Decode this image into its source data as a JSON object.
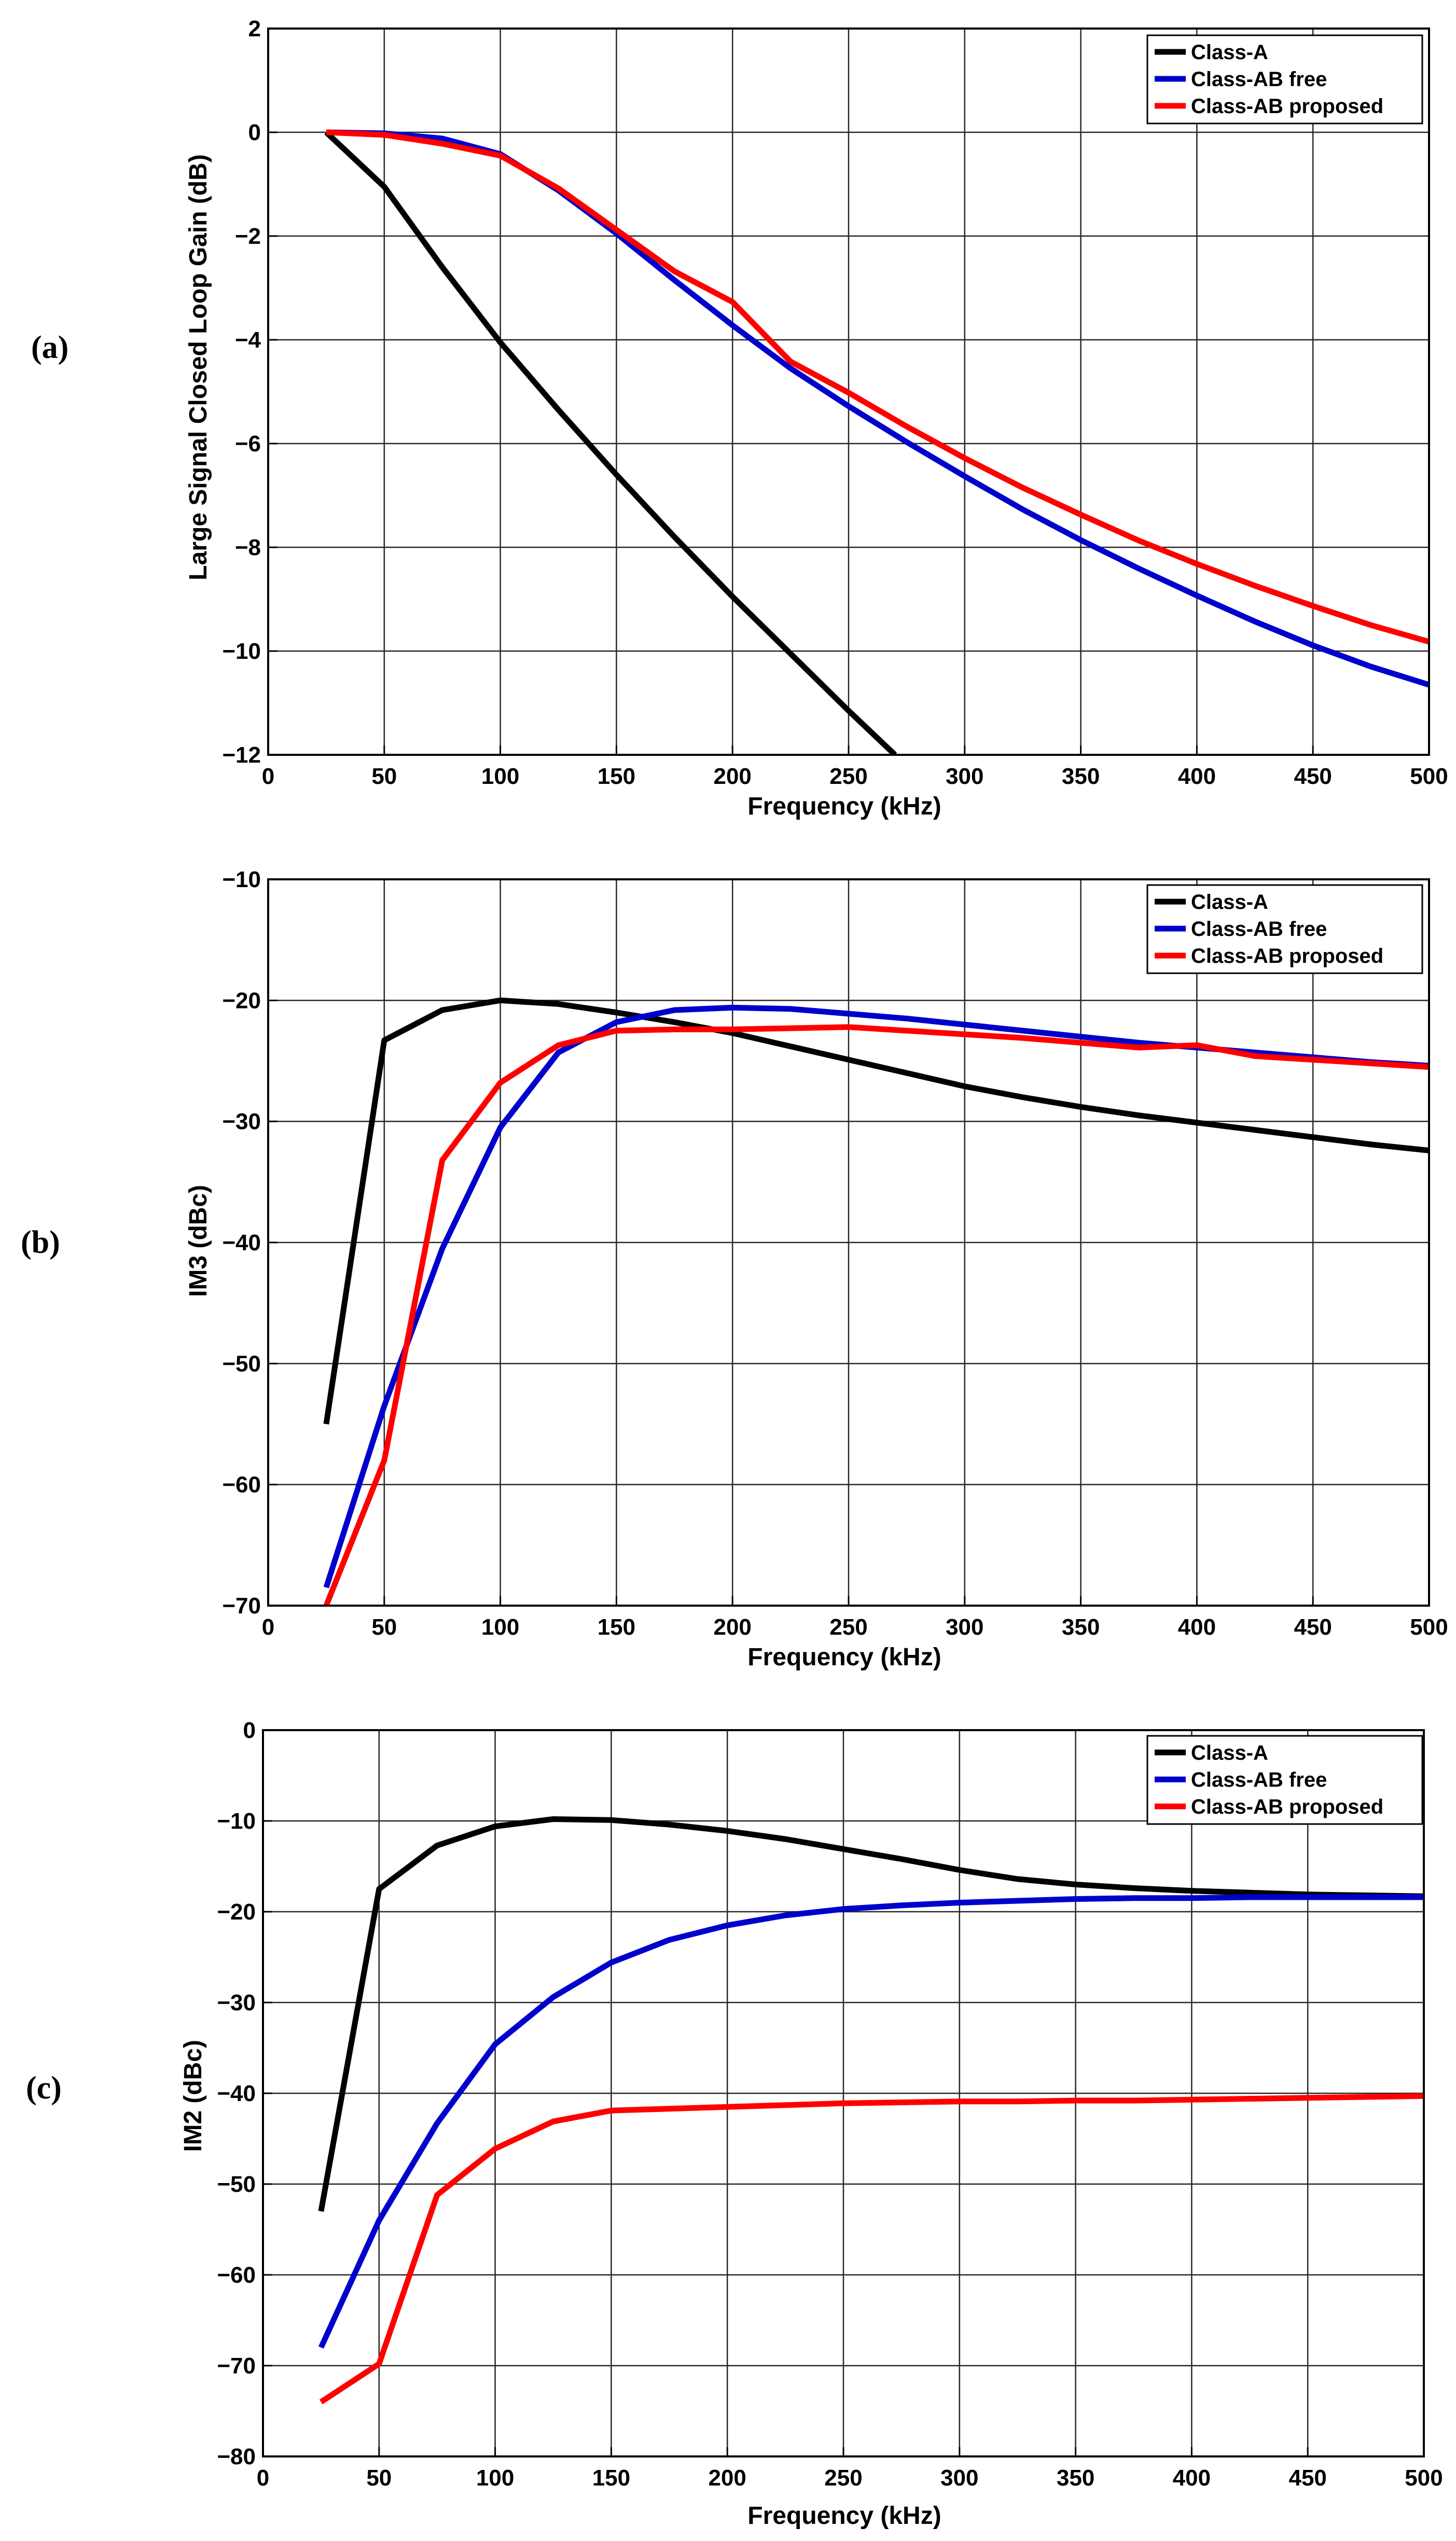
{
  "chart_data": [
    {
      "panel_label": "(a)",
      "type": "line",
      "title": "",
      "xlabel": "Frequency (kHz)",
      "ylabel": "Large Signal Closed Loop Gain (dB)",
      "xlim": [
        0,
        500
      ],
      "ylim": [
        -12,
        2
      ],
      "xticks": [
        0,
        50,
        100,
        150,
        200,
        250,
        300,
        350,
        400,
        450,
        500
      ],
      "yticks": [
        -12,
        -10,
        -8,
        -6,
        -4,
        -2,
        0,
        2
      ],
      "grid": true,
      "legend_position": "top-right",
      "series": [
        {
          "name": "Class-A",
          "color": "#000000",
          "x": [
            25,
            50,
            75,
            100,
            125,
            150,
            175,
            200,
            225,
            250,
            270
          ],
          "y": [
            0,
            -1.05,
            -2.6,
            -4.05,
            -5.35,
            -6.6,
            -7.8,
            -8.95,
            -10.05,
            -11.15,
            -12
          ]
        },
        {
          "name": "Class-AB free",
          "color": "#0000cc",
          "x": [
            25,
            50,
            75,
            100,
            125,
            150,
            175,
            200,
            225,
            250,
            275,
            300,
            325,
            350,
            375,
            400,
            425,
            450,
            475,
            500
          ],
          "y": [
            0,
            -0.02,
            -0.12,
            -0.42,
            -1.12,
            -1.95,
            -2.85,
            -3.72,
            -4.55,
            -5.28,
            -5.97,
            -6.63,
            -7.27,
            -7.86,
            -8.41,
            -8.93,
            -9.43,
            -9.89,
            -10.3,
            -10.65
          ]
        },
        {
          "name": "Class-AB proposed",
          "color": "#ff0000",
          "x": [
            25,
            50,
            75,
            100,
            125,
            150,
            175,
            200,
            225,
            250,
            275,
            300,
            325,
            350,
            375,
            400,
            425,
            450,
            475,
            500
          ],
          "y": [
            0,
            -0.05,
            -0.22,
            -0.45,
            -1.08,
            -1.88,
            -2.68,
            -3.27,
            -4.42,
            -5.02,
            -5.67,
            -6.28,
            -6.85,
            -7.37,
            -7.87,
            -8.32,
            -8.74,
            -9.13,
            -9.5,
            -9.82
          ]
        }
      ]
    },
    {
      "panel_label": "(b)",
      "type": "line",
      "title": "",
      "xlabel": "Frequency (kHz)",
      "ylabel": "IM3 (dBc)",
      "xlim": [
        0,
        500
      ],
      "ylim": [
        -70,
        -10
      ],
      "xticks": [
        0,
        50,
        100,
        150,
        200,
        250,
        300,
        350,
        400,
        450,
        500
      ],
      "yticks": [
        -70,
        -60,
        -50,
        -40,
        -30,
        -20,
        -10
      ],
      "grid": true,
      "legend_position": "top-right",
      "series": [
        {
          "name": "Class-A",
          "color": "#000000",
          "x": [
            25,
            50,
            75,
            100,
            125,
            150,
            175,
            200,
            225,
            250,
            275,
            300,
            325,
            350,
            375,
            400,
            425,
            450,
            475,
            500
          ],
          "y": [
            -55,
            -23.3,
            -20.8,
            -20,
            -20.3,
            -21,
            -21.8,
            -22.7,
            -23.8,
            -24.9,
            -26,
            -27.1,
            -28,
            -28.8,
            -29.5,
            -30.1,
            -30.7,
            -31.3,
            -31.9,
            -32.4
          ]
        },
        {
          "name": "Class-AB free",
          "color": "#0000cc",
          "x": [
            25,
            50,
            75,
            100,
            125,
            150,
            175,
            200,
            225,
            250,
            275,
            300,
            325,
            350,
            375,
            400,
            425,
            450,
            475,
            500
          ],
          "y": [
            -68.5,
            -53.5,
            -40.5,
            -30.5,
            -24.3,
            -21.8,
            -20.8,
            -20.6,
            -20.7,
            -21.1,
            -21.5,
            -22,
            -22.5,
            -23,
            -23.5,
            -23.9,
            -24.3,
            -24.7,
            -25.1,
            -25.4
          ]
        },
        {
          "name": "Class-AB proposed",
          "color": "#ff0000",
          "x": [
            25,
            50,
            75,
            100,
            125,
            150,
            175,
            200,
            225,
            250,
            275,
            300,
            325,
            350,
            375,
            400,
            425,
            450,
            475,
            500
          ],
          "y": [
            -70,
            -58,
            -33.2,
            -26.8,
            -23.7,
            -22.5,
            -22.4,
            -22.4,
            -22.3,
            -22.2,
            -22.5,
            -22.8,
            -23.1,
            -23.5,
            -23.9,
            -23.7,
            -24.6,
            -24.9,
            -25.2,
            -25.5
          ]
        }
      ]
    },
    {
      "panel_label": "(c)",
      "type": "line",
      "title": "",
      "xlabel": "Frequency (kHz)",
      "ylabel": "IM2 (dBc)",
      "xlim": [
        0,
        500
      ],
      "ylim": [
        -80,
        0
      ],
      "xticks": [
        0,
        50,
        100,
        150,
        200,
        250,
        300,
        350,
        400,
        450,
        500
      ],
      "yticks": [
        -80,
        -70,
        -60,
        -50,
        -40,
        -30,
        -20,
        -10,
        0
      ],
      "grid": true,
      "legend_position": "top-right",
      "series": [
        {
          "name": "Class-A",
          "color": "#000000",
          "x": [
            25,
            50,
            75,
            100,
            125,
            150,
            175,
            200,
            225,
            250,
            275,
            300,
            325,
            350,
            375,
            400,
            425,
            450,
            475,
            500
          ],
          "y": [
            -53,
            -17.5,
            -12.7,
            -10.6,
            -9.8,
            -9.9,
            -10.4,
            -11.1,
            -12,
            -13.1,
            -14.2,
            -15.4,
            -16.4,
            -17,
            -17.4,
            -17.7,
            -17.9,
            -18.1,
            -18.2,
            -18.3
          ]
        },
        {
          "name": "Class-AB free",
          "color": "#0000cc",
          "x": [
            25,
            50,
            75,
            100,
            125,
            150,
            175,
            200,
            225,
            250,
            275,
            300,
            325,
            350,
            375,
            400,
            425,
            450,
            475,
            500
          ],
          "y": [
            -68,
            -54,
            -43.3,
            -34.6,
            -29.4,
            -25.6,
            -23.1,
            -21.5,
            -20.4,
            -19.7,
            -19.3,
            -19,
            -18.8,
            -18.6,
            -18.5,
            -18.5,
            -18.4,
            -18.4,
            -18.4,
            -18.4
          ]
        },
        {
          "name": "Class-AB proposed",
          "color": "#ff0000",
          "x": [
            25,
            50,
            75,
            100,
            125,
            150,
            175,
            200,
            225,
            250,
            275,
            300,
            325,
            350,
            375,
            400,
            425,
            450,
            475,
            500
          ],
          "y": [
            -74,
            -69.8,
            -51.2,
            -46.1,
            -43.1,
            -41.9,
            -41.7,
            -41.5,
            -41.3,
            -41.1,
            -41,
            -40.9,
            -40.9,
            -40.8,
            -40.8,
            -40.7,
            -40.6,
            -40.5,
            -40.4,
            -40.3
          ]
        }
      ]
    }
  ]
}
